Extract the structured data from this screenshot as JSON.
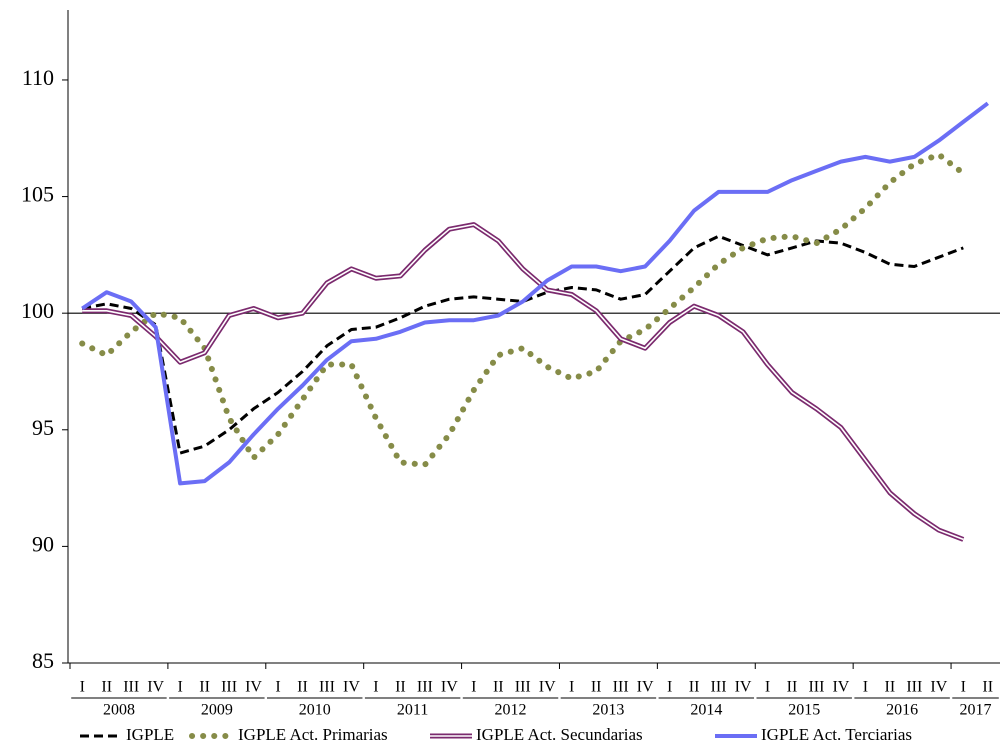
{
  "chart_data": {
    "type": "line",
    "categories": [
      "I",
      "II",
      "III",
      "IV",
      "I",
      "II",
      "III",
      "IV",
      "I",
      "II",
      "III",
      "IV",
      "I",
      "II",
      "III",
      "IV",
      "I",
      "II",
      "III",
      "IV",
      "I",
      "II",
      "III",
      "IV",
      "I",
      "II",
      "III",
      "IV",
      "I",
      "II",
      "III",
      "IV",
      "I",
      "II",
      "III",
      "IV",
      "I",
      "II"
    ],
    "years": [
      "2008",
      "2009",
      "2010",
      "2011",
      "2012",
      "2013",
      "2014",
      "2015",
      "2016",
      "2017"
    ],
    "ylim": [
      85,
      113
    ],
    "yticks": [
      85,
      90,
      95,
      100,
      105,
      110
    ],
    "reference_line": 100,
    "legend": "bottom",
    "series": [
      {
        "name": "IGPLE",
        "color": "#000000",
        "line_style": "dashed",
        "values": [
          100.2,
          100.4,
          100.2,
          99.5,
          94.0,
          94.3,
          95.0,
          95.9,
          96.6,
          97.5,
          98.6,
          99.3,
          99.4,
          99.8,
          100.3,
          100.6,
          100.7,
          100.6,
          100.5,
          100.9,
          101.1,
          101.0,
          100.6,
          100.8,
          101.8,
          102.8,
          103.3,
          102.9,
          102.5,
          102.8,
          103.1,
          103.0,
          102.6,
          102.1,
          102.0,
          102.4,
          102.8,
          null
        ]
      },
      {
        "name": "IGPLE Act. Primarias",
        "color": "#868c48",
        "line_style": "dotted",
        "values": [
          98.7,
          98.2,
          99.2,
          100.0,
          99.8,
          98.5,
          95.5,
          93.8,
          94.8,
          96.3,
          97.8,
          97.8,
          95.5,
          93.6,
          93.5,
          94.8,
          96.7,
          98.2,
          98.5,
          97.7,
          97.2,
          97.5,
          98.8,
          99.3,
          100.2,
          101.1,
          102.1,
          102.8,
          103.2,
          103.3,
          103.0,
          103.6,
          104.5,
          105.6,
          106.4,
          106.8,
          106.0,
          null
        ]
      },
      {
        "name": "IGPLE Act. Secundarias",
        "color": "#7b2a6e",
        "line_style": "double",
        "values": [
          100.1,
          100.1,
          99.9,
          99.0,
          97.9,
          98.3,
          99.9,
          100.2,
          99.8,
          100.0,
          101.3,
          101.9,
          101.5,
          101.6,
          102.7,
          103.6,
          103.8,
          103.1,
          101.9,
          101.0,
          100.8,
          100.1,
          98.9,
          98.5,
          99.6,
          100.3,
          99.9,
          99.2,
          97.8,
          96.6,
          95.9,
          95.1,
          93.7,
          92.3,
          91.4,
          90.7,
          90.3,
          null
        ]
      },
      {
        "name": "IGPLE Act. Terciarias",
        "color": "#6b6ef5",
        "line_style": "solid",
        "values": [
          100.2,
          100.9,
          100.5,
          99.4,
          92.7,
          92.8,
          93.6,
          94.8,
          95.9,
          96.9,
          98.0,
          98.8,
          98.9,
          99.2,
          99.6,
          99.7,
          99.7,
          99.9,
          100.5,
          101.4,
          102.0,
          102.0,
          101.8,
          102.0,
          103.1,
          104.4,
          105.2,
          105.2,
          105.2,
          105.7,
          106.1,
          106.5,
          106.7,
          106.5,
          106.7,
          107.4,
          108.2,
          109.0
        ]
      }
    ]
  }
}
